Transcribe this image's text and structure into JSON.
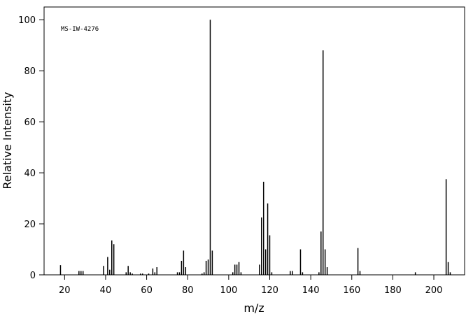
{
  "chart_data": {
    "type": "stick",
    "annotation": "MS-IW-4276",
    "xlabel": "m/z",
    "ylabel": "Relative Intensity",
    "x": [
      18,
      27,
      28,
      29,
      39,
      41,
      42,
      43,
      44,
      50,
      51,
      52,
      53,
      57,
      58,
      61,
      63,
      64,
      65,
      75,
      76,
      77,
      78,
      79,
      87,
      88,
      89,
      90,
      91,
      92,
      102,
      103,
      104,
      105,
      106,
      115,
      116,
      117,
      118,
      119,
      120,
      121,
      130,
      131,
      135,
      136,
      144,
      145,
      146,
      147,
      148,
      163,
      164,
      191,
      206,
      207,
      208
    ],
    "values": [
      3.8,
      1.5,
      1.5,
      1.5,
      3.5,
      7,
      2,
      13.5,
      12,
      1,
      3.5,
      1,
      0.5,
      0.5,
      0.5,
      0.5,
      2.5,
      1,
      3,
      1,
      1,
      5.5,
      9.5,
      3,
      0.5,
      1,
      5.5,
      6,
      100,
      9.5,
      1,
      4,
      4,
      5,
      1,
      4,
      22.5,
      36.5,
      10,
      28,
      15.5,
      1,
      1.5,
      1.5,
      10,
      1,
      1,
      17,
      88,
      10,
      3,
      10.5,
      1.5,
      1,
      37.5,
      5,
      1
    ],
    "color": "#000000",
    "xlim": [
      10,
      215
    ],
    "ylim": [
      0,
      105
    ],
    "xticks": [
      20,
      40,
      60,
      80,
      100,
      120,
      140,
      160,
      180,
      200
    ],
    "yticks": [
      0,
      20,
      40,
      60,
      80,
      100
    ]
  }
}
